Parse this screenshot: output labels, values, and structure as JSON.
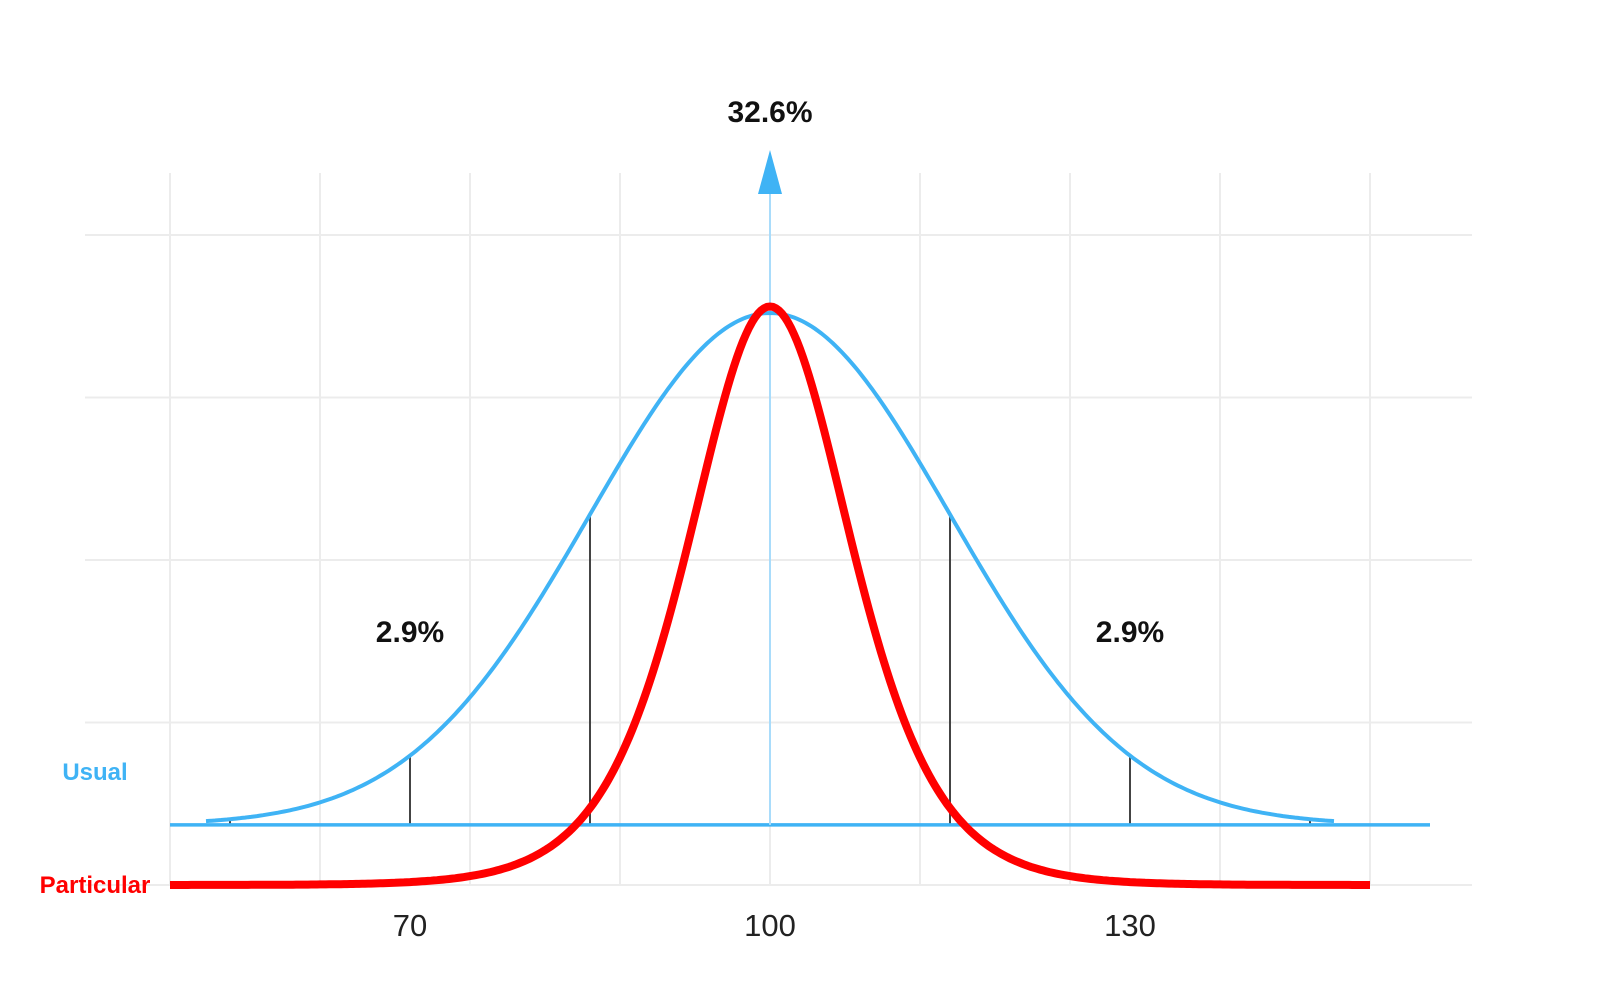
{
  "chart_data": {
    "type": "line",
    "title": "",
    "xlabel": "",
    "ylabel": "",
    "xlim": [
      50,
      150
    ],
    "ylim": [
      0,
      40
    ],
    "grid": true,
    "x_ticks": [
      {
        "value": 70,
        "label": "70"
      },
      {
        "value": 100,
        "label": "100"
      },
      {
        "value": 130,
        "label": "130"
      }
    ],
    "series": [
      {
        "name": "Usual",
        "color": "#3fb3f5",
        "baseline": 3.7,
        "mean": 100,
        "sd": 15,
        "x_range": [
          53,
          147
        ],
        "peak": 35.2,
        "drop_lines_x": [
          55,
          70,
          85,
          115,
          130,
          145
        ]
      },
      {
        "name": "Particular",
        "color": "#ff0000",
        "baseline": 0,
        "mean": 100,
        "scale": 9,
        "x_range": [
          50,
          150
        ],
        "peak": 35.6
      }
    ],
    "annotations": [
      {
        "text": "32.6%",
        "x": 100,
        "kind": "peak-arrow"
      },
      {
        "text": "2.9%",
        "x": 70,
        "kind": "tail"
      },
      {
        "text": "2.9%",
        "x": 130,
        "kind": "tail"
      }
    ]
  }
}
